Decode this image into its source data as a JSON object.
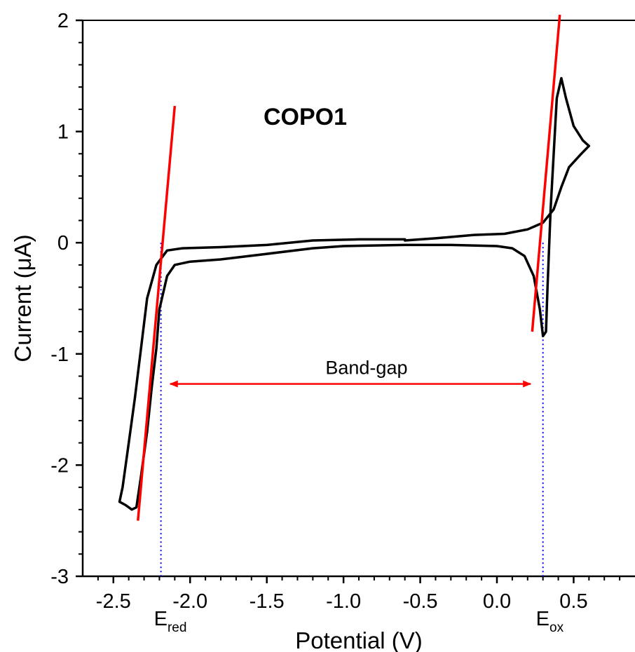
{
  "chart_data": {
    "type": "line",
    "title": "COPO1",
    "xlabel": "Potential (V)",
    "ylabel": "Current (μA)",
    "xlim": [
      -2.7,
      0.9
    ],
    "ylim": [
      -3,
      2
    ],
    "xticks": [
      -2.5,
      -2.0,
      -1.5,
      -1.0,
      -0.5,
      0.0,
      0.5
    ],
    "xtick_labels": [
      "-2.5",
      "-2.0",
      "-1.5",
      "-1.0",
      "-0.5",
      "0.0",
      "0.5"
    ],
    "yticks": [
      -3,
      -2,
      -1,
      0,
      1,
      2
    ],
    "ytick_labels": [
      "-3",
      "-2",
      "-1",
      "0",
      "1",
      "2"
    ],
    "grid": false,
    "series": [
      {
        "color": "#000000",
        "points": [
          [
            -0.6,
            0.03
          ],
          [
            -0.9,
            0.03
          ],
          [
            -1.2,
            0.02
          ],
          [
            -1.5,
            -0.02
          ],
          [
            -1.8,
            -0.04
          ],
          [
            -2.05,
            -0.05
          ],
          [
            -2.15,
            -0.07
          ],
          [
            -2.22,
            -0.2
          ],
          [
            -2.28,
            -0.5
          ],
          [
            -2.32,
            -0.95
          ],
          [
            -2.36,
            -1.4
          ],
          [
            -2.4,
            -1.8
          ],
          [
            -2.44,
            -2.2
          ],
          [
            -2.46,
            -2.33
          ],
          [
            -2.42,
            -2.36
          ],
          [
            -2.38,
            -2.4
          ],
          [
            -2.35,
            -2.38
          ],
          [
            -2.32,
            -2.1
          ],
          [
            -2.28,
            -1.7
          ],
          [
            -2.25,
            -1.3
          ],
          [
            -2.22,
            -0.95
          ],
          [
            -2.2,
            -0.6
          ],
          [
            -2.15,
            -0.3
          ],
          [
            -2.1,
            -0.2
          ],
          [
            -2.0,
            -0.17
          ],
          [
            -1.8,
            -0.15
          ],
          [
            -1.5,
            -0.1
          ],
          [
            -1.2,
            -0.05
          ],
          [
            -1.0,
            -0.03
          ],
          [
            -0.6,
            -0.02
          ],
          [
            -0.3,
            -0.02
          ],
          [
            0.0,
            -0.03
          ],
          [
            0.1,
            -0.05
          ],
          [
            0.18,
            -0.12
          ],
          [
            0.24,
            -0.3
          ],
          [
            0.28,
            -0.6
          ],
          [
            0.3,
            -0.84
          ],
          [
            0.32,
            -0.8
          ],
          [
            0.33,
            -0.4
          ],
          [
            0.34,
            -0.05
          ],
          [
            0.35,
            0.3
          ],
          [
            0.37,
            0.8
          ],
          [
            0.39,
            1.3
          ],
          [
            0.42,
            1.48
          ],
          [
            0.45,
            1.3
          ],
          [
            0.5,
            1.05
          ],
          [
            0.56,
            0.92
          ],
          [
            0.6,
            0.87
          ],
          [
            0.55,
            0.8
          ],
          [
            0.47,
            0.68
          ],
          [
            0.42,
            0.5
          ],
          [
            0.37,
            0.3
          ],
          [
            0.3,
            0.18
          ],
          [
            0.2,
            0.12
          ],
          [
            0.05,
            0.08
          ],
          [
            -0.15,
            0.07
          ],
          [
            -0.4,
            0.04
          ],
          [
            -0.6,
            0.02
          ]
        ]
      }
    ],
    "tangent_lines": [
      {
        "color": "#ff0000",
        "from": [
          -2.34,
          -2.5
        ],
        "to": [
          -2.1,
          1.23
        ]
      },
      {
        "color": "#ff0000",
        "from": [
          0.23,
          -0.8
        ],
        "to": [
          0.41,
          2.05
        ]
      }
    ],
    "vertical_markers": [
      {
        "x": -2.19,
        "label": "E",
        "sub": "red",
        "color": "#0000ff"
      },
      {
        "x": 0.3,
        "label": "E",
        "sub": "ox",
        "color": "#0000ff"
      }
    ],
    "annotations": [
      {
        "text": "Band-gap",
        "x": -0.85,
        "y": -1.15
      }
    ],
    "arrows": [
      {
        "from": [
          -2.13,
          -1.27
        ],
        "to": [
          0.22,
          -1.27
        ],
        "color": "#ff0000",
        "double_headed": true
      }
    ]
  }
}
